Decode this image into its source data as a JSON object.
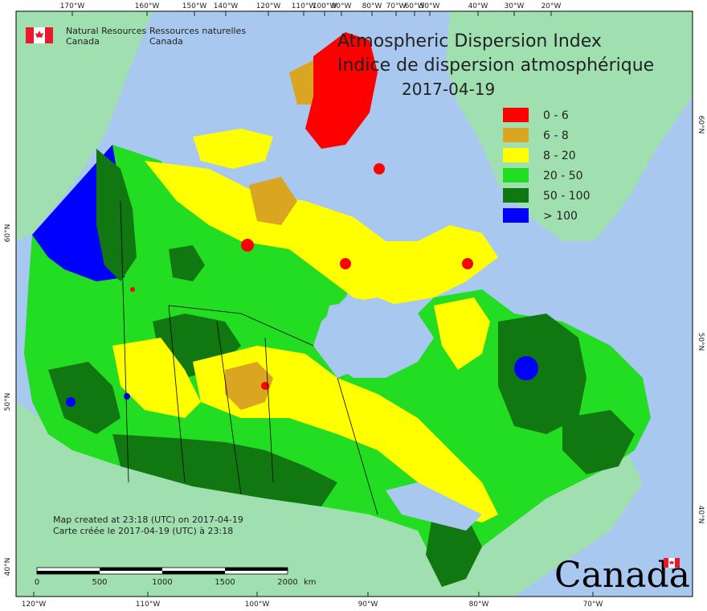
{
  "title_en": "Atmospheric Dispersion Index",
  "title_fr": "Indice de dispersion atmosphérique",
  "date": "2017-04-19",
  "agency_en_line1": "Natural Resources",
  "agency_en_line2": "Canada",
  "agency_fr_line1": "Ressources naturelles",
  "agency_fr_line2": "Canada",
  "wordmark": "Canada",
  "created_en": "Map created at 23:18 (UTC) on 2017-04-19",
  "created_fr": "Carte créée le 2017-04-19 (UTC) à 23:18",
  "legend": [
    {
      "label": "0 - 6",
      "color": "#ff0000"
    },
    {
      "label": "6 - 8",
      "color": "#daa520"
    },
    {
      "label": "8 - 20",
      "color": "#ffff00"
    },
    {
      "label": "20 - 50",
      "color": "#22dd22"
    },
    {
      "label": "50 - 100",
      "color": "#117711"
    },
    {
      "label": "> 100",
      "color": "#0000ff"
    }
  ],
  "scalebar": {
    "ticks": [
      "0",
      "500",
      "1000",
      "1500",
      "2000"
    ],
    "unit": "km"
  },
  "top_lon_labels": [
    "170°W",
    "160°W",
    "150°W",
    "140°W",
    "120°W",
    "110°W",
    "100°W",
    "90°W",
    "80°W",
    "70°W",
    "60°W",
    "50°W",
    "40°W",
    "30°W",
    "20°W"
  ],
  "bottom_lon_labels": [
    "120°W",
    "110°W",
    "100°W",
    "90°W",
    "80°W",
    "70°W"
  ],
  "left_lat_labels": [
    "60°N",
    "50°N",
    "40°N"
  ],
  "right_lat_labels": [
    "60°N",
    "50°N",
    "40°N"
  ],
  "colors": {
    "ocean": "#a8c8f0",
    "land_other": "#a0e0b0",
    "border": "#000000"
  }
}
